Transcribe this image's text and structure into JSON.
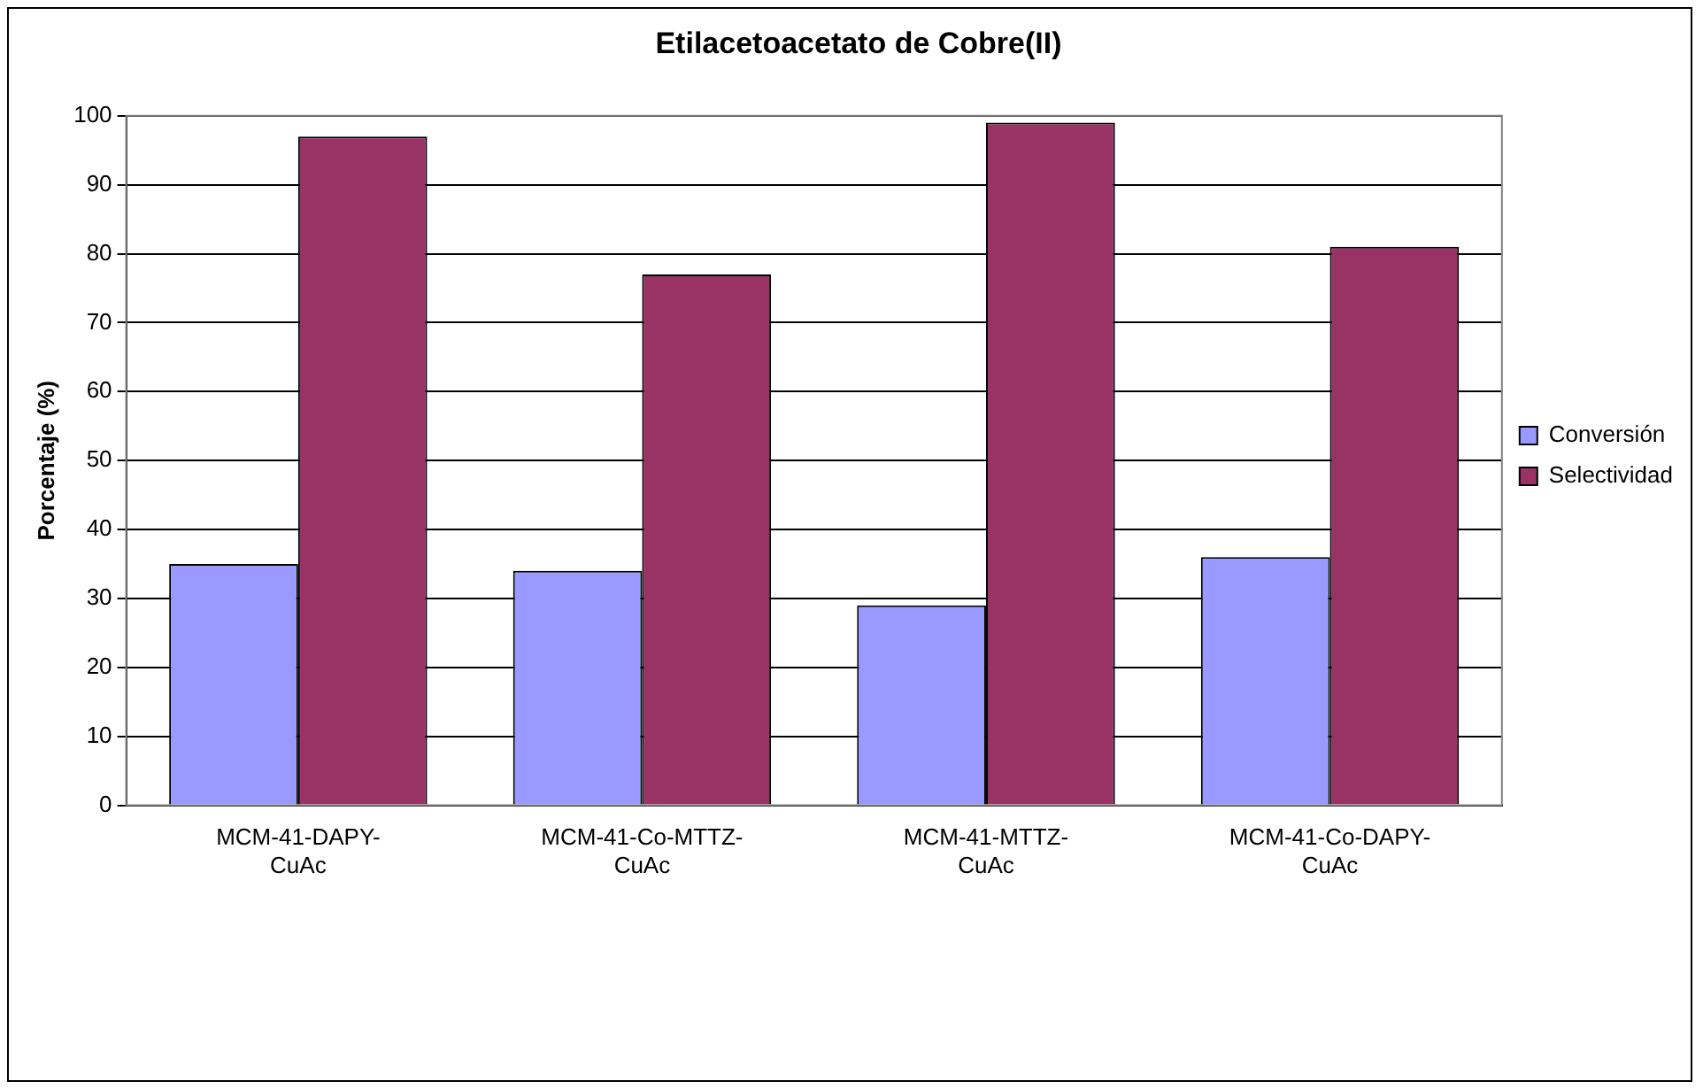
{
  "chart_data": {
    "type": "bar",
    "title": "Etilacetoacetato de Cobre(II)",
    "ylabel": "Porcentaje (%)",
    "categories": [
      "MCM-41-DAPY-CuAc",
      "MCM-41-Co-MTTZ-CuAc",
      "MCM-41-MTTZ-CuAc",
      "MCM-41-Co-DAPY-CuAc"
    ],
    "series": [
      {
        "name": "Conversión",
        "color": "#9999ff",
        "values": [
          35,
          34,
          29,
          36
        ]
      },
      {
        "name": "Selectividad",
        "color": "#993366",
        "values": [
          97,
          77,
          99,
          81
        ]
      }
    ],
    "ylim": [
      0,
      100
    ],
    "yticks": [
      0,
      10,
      20,
      30,
      40,
      50,
      60,
      70,
      80,
      90,
      100
    ],
    "grid": "y",
    "legend": "right"
  }
}
